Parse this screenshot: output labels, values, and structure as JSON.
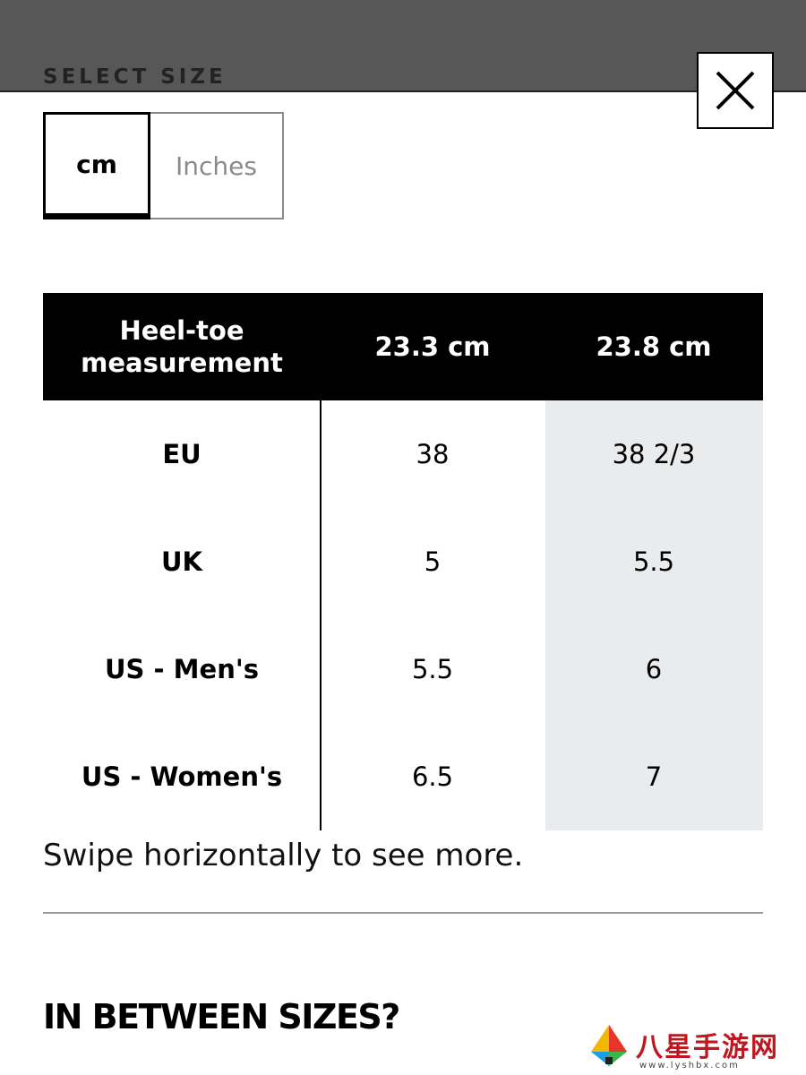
{
  "header": {
    "title": "SELECT SIZE",
    "close_icon": "close-icon"
  },
  "unit_toggle": {
    "options": [
      "cm",
      "Inches"
    ],
    "selected": "cm"
  },
  "size_table": {
    "header_label": "Heel-toe measurement",
    "columns": [
      "23.3 cm",
      "23.8 cm"
    ],
    "rows": [
      {
        "label": "EU",
        "values": [
          "38",
          "38 2/3"
        ]
      },
      {
        "label": "UK",
        "values": [
          "5",
          "5.5"
        ]
      },
      {
        "label": "US - Men's",
        "values": [
          "5.5",
          "6"
        ]
      },
      {
        "label": "US - Women's",
        "values": [
          "6.5",
          "7"
        ]
      }
    ],
    "highlighted_column": "23.8 cm"
  },
  "hint": "Swipe horizontally to see more.",
  "section": {
    "title": "IN BETWEEN SIZES?"
  },
  "watermark": {
    "text": "八星手游网",
    "url": "www.lyshbx.com"
  },
  "colors": {
    "overlay": "#575757",
    "table_header_bg": "#000000",
    "highlight_column": "#eaebed",
    "inactive_text": "#8a8a8a"
  }
}
